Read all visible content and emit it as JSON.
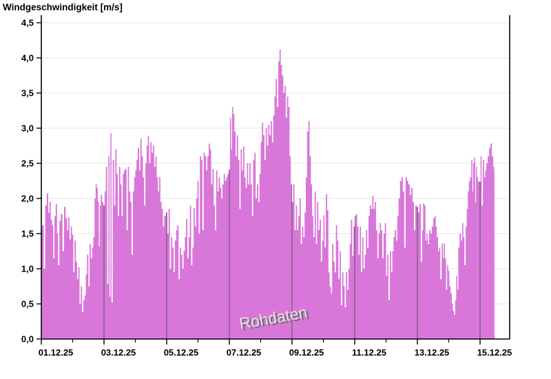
{
  "page": {
    "title": "Windgeschwindigkeit [m/s]"
  },
  "watermark": {
    "label": "Rohdaten"
  },
  "colors": {
    "area_fill": "#d976d9",
    "grid_horizontal": "#ebebeb",
    "grid_vertical": "#55555e",
    "axis": "#000000",
    "label_text": "#000000",
    "watermark_main": "#e3e3e3",
    "watermark_shadow": "#6e6e6e"
  },
  "chart_data": {
    "type": "area",
    "title": "Windgeschwindigkeit [m/s]",
    "ylabel": "Windgeschwindigkeit [m/s]",
    "xlabel": "",
    "series_name": "Rohdaten",
    "ylim": [
      0,
      4.5
    ],
    "y_tick_step": 0.5,
    "y_tick_labels": [
      "0,0",
      "0,5",
      "1,0",
      "1,5",
      "2,0",
      "2,5",
      "3,0",
      "3,5",
      "4,0",
      "4,5"
    ],
    "x_tick_labels": [
      "01.12.25",
      "03.12.25",
      "05.12.25",
      "07.12.25",
      "09.12.25",
      "11.12.25",
      "13.12.25",
      "15.12.25"
    ],
    "x_major_tick_days": [
      1,
      3,
      5,
      7,
      9,
      11,
      13,
      15
    ],
    "x_minor_tick_days": [
      2,
      4,
      6,
      8,
      10,
      12,
      14
    ],
    "x_domain_days": [
      1,
      15.96
    ],
    "grid": {
      "horizontal": true,
      "vertical_clipped_to_area": true
    },
    "legend_position": "none",
    "points": [
      [
        1.0,
        1.55
      ],
      [
        1.05,
        1.62
      ],
      [
        1.1,
        1.0
      ],
      [
        1.15,
        1.9
      ],
      [
        1.2,
        2.07
      ],
      [
        1.24,
        1.8
      ],
      [
        1.28,
        1.95
      ],
      [
        1.32,
        1.7
      ],
      [
        1.36,
        1.62
      ],
      [
        1.4,
        1.15
      ],
      [
        1.44,
        1.75
      ],
      [
        1.48,
        1.92
      ],
      [
        1.52,
        1.5
      ],
      [
        1.55,
        1.05
      ],
      [
        1.6,
        1.68
      ],
      [
        1.65,
        1.78
      ],
      [
        1.7,
        1.25
      ],
      [
        1.75,
        1.88
      ],
      [
        1.8,
        1.72
      ],
      [
        1.84,
        1.55
      ],
      [
        1.88,
        1.73
      ],
      [
        1.92,
        1.42
      ],
      [
        1.96,
        1.6
      ],
      [
        2.0,
        1.48
      ],
      [
        2.04,
        0.95
      ],
      [
        2.08,
        1.4
      ],
      [
        2.12,
        1.1
      ],
      [
        2.16,
        0.85
      ],
      [
        2.2,
        1.02
      ],
      [
        2.24,
        0.5
      ],
      [
        2.28,
        0.75
      ],
      [
        2.32,
        0.38
      ],
      [
        2.36,
        0.55
      ],
      [
        2.4,
        0.62
      ],
      [
        2.44,
        0.92
      ],
      [
        2.48,
        1.2
      ],
      [
        2.52,
        0.75
      ],
      [
        2.56,
        1.35
      ],
      [
        2.6,
        1.15
      ],
      [
        2.64,
        1.3
      ],
      [
        2.68,
        1.45
      ],
      [
        2.72,
        2.0
      ],
      [
        2.75,
        2.21
      ],
      [
        2.78,
        2.15
      ],
      [
        2.82,
        1.95
      ],
      [
        2.85,
        1.32
      ],
      [
        2.88,
        1.9
      ],
      [
        2.92,
        2.05
      ],
      [
        2.96,
        1.95
      ],
      [
        3.0,
        1.9
      ],
      [
        3.04,
        2.1
      ],
      [
        3.08,
        2.45
      ],
      [
        3.12,
        0.78
      ],
      [
        3.16,
        2.6
      ],
      [
        3.19,
        0.6
      ],
      [
        3.22,
        2.93
      ],
      [
        3.26,
        0.52
      ],
      [
        3.3,
        2.55
      ],
      [
        3.34,
        1.9
      ],
      [
        3.38,
        2.7
      ],
      [
        3.42,
        2.35
      ],
      [
        3.46,
        1.75
      ],
      [
        3.5,
        2.45
      ],
      [
        3.54,
        2.2
      ],
      [
        3.58,
        1.75
      ],
      [
        3.62,
        2.35
      ],
      [
        3.66,
        2.4
      ],
      [
        3.7,
        2.42
      ],
      [
        3.74,
        1.55
      ],
      [
        3.78,
        2.45
      ],
      [
        3.82,
        2.1
      ],
      [
        3.86,
        1.95
      ],
      [
        3.9,
        1.2
      ],
      [
        3.94,
        2.1
      ],
      [
        3.98,
        2.3
      ],
      [
        4.02,
        2.4
      ],
      [
        4.06,
        2.55
      ],
      [
        4.1,
        2.72
      ],
      [
        4.14,
        2.4
      ],
      [
        4.18,
        2.85
      ],
      [
        4.22,
        2.6
      ],
      [
        4.26,
        2.3
      ],
      [
        4.3,
        1.9
      ],
      [
        4.34,
        2.5
      ],
      [
        4.38,
        2.75
      ],
      [
        4.42,
        2.89
      ],
      [
        4.46,
        2.5
      ],
      [
        4.5,
        2.8
      ],
      [
        4.54,
        2.65
      ],
      [
        4.58,
        2.75
      ],
      [
        4.62,
        2.45
      ],
      [
        4.66,
        2.6
      ],
      [
        4.7,
        2.3
      ],
      [
        4.74,
        2.1
      ],
      [
        4.78,
        2.3
      ],
      [
        4.82,
        1.95
      ],
      [
        4.86,
        1.85
      ],
      [
        4.9,
        1.6
      ],
      [
        4.94,
        1.75
      ],
      [
        5.0,
        1.8
      ],
      [
        5.04,
        1.5
      ],
      [
        5.08,
        1.85
      ],
      [
        5.12,
        1.0
      ],
      [
        5.16,
        1.45
      ],
      [
        5.2,
        1.3
      ],
      [
        5.24,
        0.95
      ],
      [
        5.28,
        1.4
      ],
      [
        5.32,
        1.55
      ],
      [
        5.36,
        1.62
      ],
      [
        5.4,
        0.85
      ],
      [
        5.44,
        1.3
      ],
      [
        5.48,
        1.2
      ],
      [
        5.52,
        1.0
      ],
      [
        5.56,
        1.25
      ],
      [
        5.6,
        1.45
      ],
      [
        5.64,
        1.71
      ],
      [
        5.68,
        1.15
      ],
      [
        5.72,
        1.45
      ],
      [
        5.76,
        1.9
      ],
      [
        5.8,
        1.05
      ],
      [
        5.84,
        1.3
      ],
      [
        5.88,
        1.86
      ],
      [
        5.92,
        1.6
      ],
      [
        5.96,
        2.0
      ],
      [
        6.0,
        2.25
      ],
      [
        6.04,
        1.5
      ],
      [
        6.08,
        2.6
      ],
      [
        6.12,
        2.55
      ],
      [
        6.16,
        1.55
      ],
      [
        6.2,
        2.65
      ],
      [
        6.24,
        2.6
      ],
      [
        6.28,
        2.4
      ],
      [
        6.32,
        2.6
      ],
      [
        6.36,
        2.78
      ],
      [
        6.4,
        2.7
      ],
      [
        6.44,
        2.2
      ],
      [
        6.48,
        2.42
      ],
      [
        6.52,
        1.9
      ],
      [
        6.56,
        1.55
      ],
      [
        6.6,
        2.4
      ],
      [
        6.64,
        2.1
      ],
      [
        6.68,
        2.3
      ],
      [
        6.72,
        2.15
      ],
      [
        6.76,
        2.0
      ],
      [
        6.8,
        2.2
      ],
      [
        6.84,
        2.35
      ],
      [
        6.88,
        2.25
      ],
      [
        6.92,
        2.3
      ],
      [
        6.96,
        2.35
      ],
      [
        7.0,
        2.41
      ],
      [
        7.04,
        3.15
      ],
      [
        7.07,
        2.7
      ],
      [
        7.1,
        3.3
      ],
      [
        7.14,
        3.2
      ],
      [
        7.18,
        2.95
      ],
      [
        7.22,
        2.6
      ],
      [
        7.26,
        2.9
      ],
      [
        7.3,
        2.55
      ],
      [
        7.34,
        1.85
      ],
      [
        7.38,
        2.7
      ],
      [
        7.42,
        2.4
      ],
      [
        7.46,
        2.74
      ],
      [
        7.5,
        2.3
      ],
      [
        7.54,
        2.15
      ],
      [
        7.58,
        2.5
      ],
      [
        7.62,
        2.2
      ],
      [
        7.66,
        2.5
      ],
      [
        7.7,
        2.2
      ],
      [
        7.74,
        1.75
      ],
      [
        7.78,
        2.55
      ],
      [
        7.82,
        2.65
      ],
      [
        7.86,
        2.0
      ],
      [
        7.9,
        2.2
      ],
      [
        7.94,
        1.95
      ],
      [
        7.98,
        2.35
      ],
      [
        8.02,
        2.8
      ],
      [
        8.06,
        3.08
      ],
      [
        8.1,
        2.9
      ],
      [
        8.14,
        2.55
      ],
      [
        8.18,
        3.0
      ],
      [
        8.22,
        2.75
      ],
      [
        8.26,
        3.05
      ],
      [
        8.3,
        2.9
      ],
      [
        8.34,
        3.1
      ],
      [
        8.38,
        2.8
      ],
      [
        8.42,
        3.18
      ],
      [
        8.46,
        3.45
      ],
      [
        8.5,
        3.7
      ],
      [
        8.54,
        3.3
      ],
      [
        8.58,
        3.95
      ],
      [
        8.62,
        4.12
      ],
      [
        8.66,
        3.9
      ],
      [
        8.7,
        3.75
      ],
      [
        8.74,
        3.5
      ],
      [
        8.78,
        3.6
      ],
      [
        8.82,
        3.15
      ],
      [
        8.86,
        3.45
      ],
      [
        8.9,
        3.3
      ],
      [
        8.94,
        2.6
      ],
      [
        8.98,
        2.2
      ],
      [
        9.02,
        1.95
      ],
      [
        9.06,
        2.2
      ],
      [
        9.1,
        1.55
      ],
      [
        9.14,
        1.9
      ],
      [
        9.18,
        1.55
      ],
      [
        9.22,
        1.75
      ],
      [
        9.26,
        2.0
      ],
      [
        9.3,
        1.35
      ],
      [
        9.34,
        1.6
      ],
      [
        9.38,
        1.45
      ],
      [
        9.42,
        1.8
      ],
      [
        9.46,
        2.3
      ],
      [
        9.5,
        2.95
      ],
      [
        9.54,
        3.1
      ],
      [
        9.58,
        2.6
      ],
      [
        9.62,
        2.2
      ],
      [
        9.66,
        1.75
      ],
      [
        9.7,
        1.45
      ],
      [
        9.74,
        2.1
      ],
      [
        9.78,
        1.35
      ],
      [
        9.82,
        1.95
      ],
      [
        9.86,
        1.55
      ],
      [
        9.9,
        1.7
      ],
      [
        9.94,
        1.1
      ],
      [
        9.98,
        1.4
      ],
      [
        10.02,
        1.76
      ],
      [
        10.06,
        1.3
      ],
      [
        10.1,
        2.06
      ],
      [
        10.14,
        1.83
      ],
      [
        10.18,
        0.95
      ],
      [
        10.22,
        0.75
      ],
      [
        10.26,
        0.65
      ],
      [
        10.3,
        1.35
      ],
      [
        10.34,
        1.1
      ],
      [
        10.38,
        0.95
      ],
      [
        10.42,
        1.62
      ],
      [
        10.46,
        1.4
      ],
      [
        10.5,
        0.85
      ],
      [
        10.54,
        1.25
      ],
      [
        10.58,
        0.48
      ],
      [
        10.62,
        0.95
      ],
      [
        10.66,
        0.75
      ],
      [
        10.7,
        0.45
      ],
      [
        10.74,
        0.95
      ],
      [
        10.78,
        0.7
      ],
      [
        10.82,
        1.0
      ],
      [
        10.86,
        1.35
      ],
      [
        10.9,
        1.7
      ],
      [
        10.94,
        1.18
      ],
      [
        10.98,
        1.6
      ],
      [
        11.02,
        1.75
      ],
      [
        11.06,
        1.78
      ],
      [
        11.1,
        1.6
      ],
      [
        11.14,
        1.2
      ],
      [
        11.18,
        1.6
      ],
      [
        11.22,
        0.95
      ],
      [
        11.26,
        1.45
      ],
      [
        11.3,
        1.0
      ],
      [
        11.34,
        1.2
      ],
      [
        11.38,
        1.55
      ],
      [
        11.42,
        1.3
      ],
      [
        11.46,
        1.75
      ],
      [
        11.5,
        1.9
      ],
      [
        11.54,
        1.85
      ],
      [
        11.58,
        2.04
      ],
      [
        11.62,
        1.85
      ],
      [
        11.66,
        1.95
      ],
      [
        11.7,
        1.55
      ],
      [
        11.74,
        1.15
      ],
      [
        11.78,
        1.5
      ],
      [
        11.82,
        1.65
      ],
      [
        11.86,
        1.55
      ],
      [
        11.9,
        1.15
      ],
      [
        11.94,
        1.5
      ],
      [
        11.98,
        1.65
      ],
      [
        12.02,
        0.9
      ],
      [
        12.06,
        1.2
      ],
      [
        12.1,
        0.55
      ],
      [
        12.14,
        1.25
      ],
      [
        12.18,
        0.95
      ],
      [
        12.22,
        1.25
      ],
      [
        12.26,
        1.45
      ],
      [
        12.3,
        1.55
      ],
      [
        12.34,
        1.4
      ],
      [
        12.38,
        1.75
      ],
      [
        12.42,
        2.0
      ],
      [
        12.47,
        2.25
      ],
      [
        12.51,
        2.3
      ],
      [
        12.56,
        2.1
      ],
      [
        12.6,
        1.3
      ],
      [
        12.65,
        2.3
      ],
      [
        12.69,
        2.25
      ],
      [
        12.73,
        2.2
      ],
      [
        12.78,
        2.05
      ],
      [
        12.82,
        2.15
      ],
      [
        12.87,
        1.95
      ],
      [
        12.91,
        1.55
      ],
      [
        12.96,
        1.9
      ],
      [
        13.0,
        1.88
      ],
      [
        13.04,
        1.8
      ],
      [
        13.09,
        1.92
      ],
      [
        13.13,
        1.1
      ],
      [
        13.17,
        1.55
      ],
      [
        13.2,
        1.93
      ],
      [
        13.24,
        1.9
      ],
      [
        13.28,
        1.4
      ],
      [
        13.31,
        1.5
      ],
      [
        13.35,
        1.35
      ],
      [
        13.4,
        1.55
      ],
      [
        13.44,
        1.5
      ],
      [
        13.48,
        1.6
      ],
      [
        13.53,
        1.72
      ],
      [
        13.57,
        1.75
      ],
      [
        13.6,
        1.6
      ],
      [
        13.64,
        1.45
      ],
      [
        13.68,
        1.25
      ],
      [
        13.71,
        1.3
      ],
      [
        13.75,
        0.85
      ],
      [
        13.8,
        1.36
      ],
      [
        13.83,
        1.15
      ],
      [
        13.86,
        1.36
      ],
      [
        13.9,
        1.15
      ],
      [
        13.93,
        0.7
      ],
      [
        13.97,
        1.05
      ],
      [
        14.0,
        0.97
      ],
      [
        14.04,
        0.75
      ],
      [
        14.08,
        0.65
      ],
      [
        14.12,
        0.5
      ],
      [
        14.15,
        0.4
      ],
      [
        14.19,
        0.34
      ],
      [
        14.22,
        0.55
      ],
      [
        14.26,
        0.9
      ],
      [
        14.29,
        0.7
      ],
      [
        14.32,
        1.3
      ],
      [
        14.37,
        1.5
      ],
      [
        14.41,
        1.4
      ],
      [
        14.45,
        1.65
      ],
      [
        14.48,
        1.45
      ],
      [
        14.52,
        1.05
      ],
      [
        14.56,
        1.6
      ],
      [
        14.59,
        1.85
      ],
      [
        14.63,
        2.1
      ],
      [
        14.66,
        2.24
      ],
      [
        14.7,
        2.3
      ],
      [
        14.74,
        2.55
      ],
      [
        14.77,
        2.1
      ],
      [
        14.79,
        2.5
      ],
      [
        14.83,
        2.58
      ],
      [
        14.86,
        1.95
      ],
      [
        14.88,
        2.45
      ],
      [
        14.92,
        2.3
      ],
      [
        14.95,
        2.24
      ],
      [
        15.0,
        2.24
      ],
      [
        15.03,
        2.6
      ],
      [
        15.07,
        1.9
      ],
      [
        15.11,
        2.55
      ],
      [
        15.15,
        2.3
      ],
      [
        15.18,
        2.4
      ],
      [
        15.22,
        2.5
      ],
      [
        15.27,
        2.6
      ],
      [
        15.31,
        2.72
      ],
      [
        15.35,
        2.78
      ],
      [
        15.4,
        2.6
      ],
      [
        15.44,
        2.45
      ],
      [
        15.46,
        2.35
      ]
    ]
  }
}
